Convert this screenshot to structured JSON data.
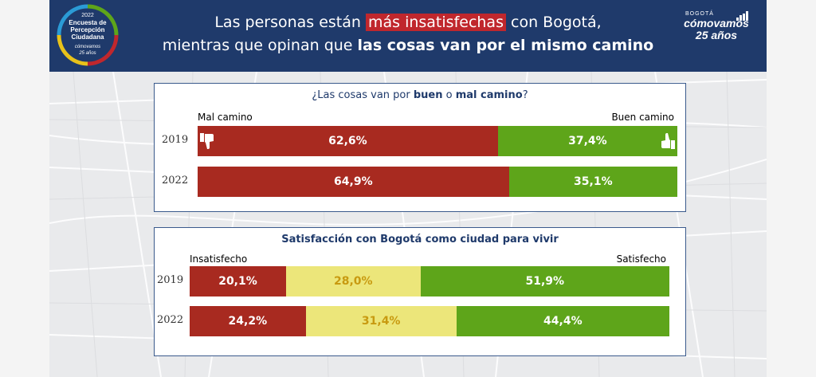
{
  "header": {
    "title_line1_pre": "Las personas están ",
    "title_line1_highlight": "más insatisfechas",
    "title_line1_post": " con Bogotá,",
    "title_line2_pre": "mientras que opinan que ",
    "title_line2_bold": "las cosas van por el mismo camino",
    "badge": {
      "year": "2022",
      "line1": "Encuesta de",
      "line2": "Percepción",
      "line3": "Ciudadana",
      "brand": "cómovamos",
      "anniv": "25 años"
    },
    "logo": {
      "city": "BOGOTÁ",
      "brand": "cómovamos",
      "anniv": "25 años"
    }
  },
  "colors": {
    "header_bg": "#1f3a6b",
    "red": "#a82a20",
    "green": "#5ea51a",
    "yellow": "#ece67a",
    "highlight": "#c0272d"
  },
  "chart_data": [
    {
      "type": "bar",
      "stacked": true,
      "orientation": "horizontal",
      "title_pre": "¿Las cosas van por ",
      "title_b1": "buen",
      "title_mid": " o ",
      "title_b2": "mal camino",
      "title_post": "?",
      "categories": [
        "2019",
        "2022"
      ],
      "series": [
        {
          "name": "Mal camino",
          "values": [
            62.6,
            64.9
          ],
          "labels": [
            "62,6%",
            "64,9%"
          ],
          "color": "#a82a20"
        },
        {
          "name": "Buen camino",
          "values": [
            37.4,
            35.1
          ],
          "labels": [
            "37,4%",
            "35,1%"
          ],
          "color": "#5ea51a"
        }
      ]
    },
    {
      "type": "bar",
      "stacked": true,
      "orientation": "horizontal",
      "title": "Satisfacción con Bogotá como ciudad para vivir",
      "categories": [
        "2019",
        "2022"
      ],
      "series": [
        {
          "name": "Insatisfecho",
          "values": [
            20.1,
            24.2
          ],
          "labels": [
            "20,1%",
            "24,2%"
          ],
          "color": "#a82a20"
        },
        {
          "name": "",
          "values": [
            28.0,
            31.4
          ],
          "labels": [
            "28,0%",
            "31,4%"
          ],
          "color": "#ece67a"
        },
        {
          "name": "Satisfecho",
          "values": [
            51.9,
            44.4
          ],
          "labels": [
            "51,9%",
            "44,4%"
          ],
          "color": "#5ea51a"
        }
      ]
    }
  ]
}
